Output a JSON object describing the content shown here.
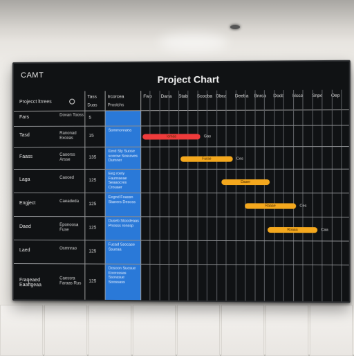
{
  "scene": {
    "colors": {
      "wall": "#efede9",
      "screen_bg": "#101214",
      "blue_column": "#2a79d8",
      "bar_red": "#ee3b3b",
      "bar_orange": "#f4a81e"
    }
  },
  "screen": {
    "corner_label": "CAMT",
    "title": "Project Chart",
    "side_header": "Projecct ltrrees",
    "header_columns": [
      {
        "top": "Tass",
        "sub": "Duas"
      },
      {
        "top": "Ircorcea",
        "sub": "Prostchs"
      },
      {
        "top": "Fwb",
        "sub": ""
      },
      {
        "top": "Dana",
        "sub": ""
      },
      {
        "top": "Stab",
        "sub": ""
      },
      {
        "top": "Scooba",
        "sub": ""
      },
      {
        "top": "Dbca",
        "sub": ""
      },
      {
        "top": "Deeba",
        "sub": ""
      },
      {
        "top": "Bnrca",
        "sub": ""
      },
      {
        "top": "Docb",
        "sub": ""
      },
      {
        "top": "Ncca",
        "sub": ""
      },
      {
        "top": "Snpe",
        "sub": ""
      },
      {
        "top": "Oep",
        "sub": ""
      }
    ],
    "rows": [
      {
        "label": "Fars",
        "name": "Dovan Tooss",
        "num": "5",
        "task": ""
      },
      {
        "label": "Tasd",
        "name": "Ranonad Exceas",
        "num": "15",
        "task": "Sommonraea"
      },
      {
        "label": "Faass",
        "name": "Caoorss Arsse",
        "num": "135",
        "task": "Eerd Sly Suose scorow Sosraves Dumner"
      },
      {
        "label": "Laga",
        "name": "Caoced",
        "num": "125",
        "task": "Eeg roeiy Faunraeae Seaaocres Crouaer"
      },
      {
        "label": "Engject",
        "name": "Caeadeda",
        "num": "125",
        "task": "Eegnd Foassn Staners Desoss"
      },
      {
        "label": "Daed",
        "name": "Eponoosa Fuse",
        "num": "125",
        "task": "Duseb Stoodeaas Pnosss ronssp"
      },
      {
        "label": "Laed",
        "name": "Osmnrao",
        "num": "125",
        "task": "Fucad Ssocase Ssueaa"
      },
      {
        "label": "Fraqeaed Eaaftgeaa",
        "name": "Caessra Faraas Rus",
        "num": "125",
        "task": "Dosoon Suosue Eoorsssas Ssorasue Soossass"
      }
    ],
    "bars": [
      {
        "label": "Iomaa",
        "tail": "Gas",
        "color": "#ee3b3b"
      },
      {
        "label": "Furae",
        "tail": "Ces",
        "color": "#f4a81e"
      },
      {
        "label": "Daaer",
        "tail": "",
        "color": "#f4a81e"
      },
      {
        "label": "Raaae",
        "tail": "Ces",
        "color": "#f4a81e"
      },
      {
        "label": "Roaaa",
        "tail": "Caa",
        "color": "#f4a81e"
      }
    ]
  }
}
